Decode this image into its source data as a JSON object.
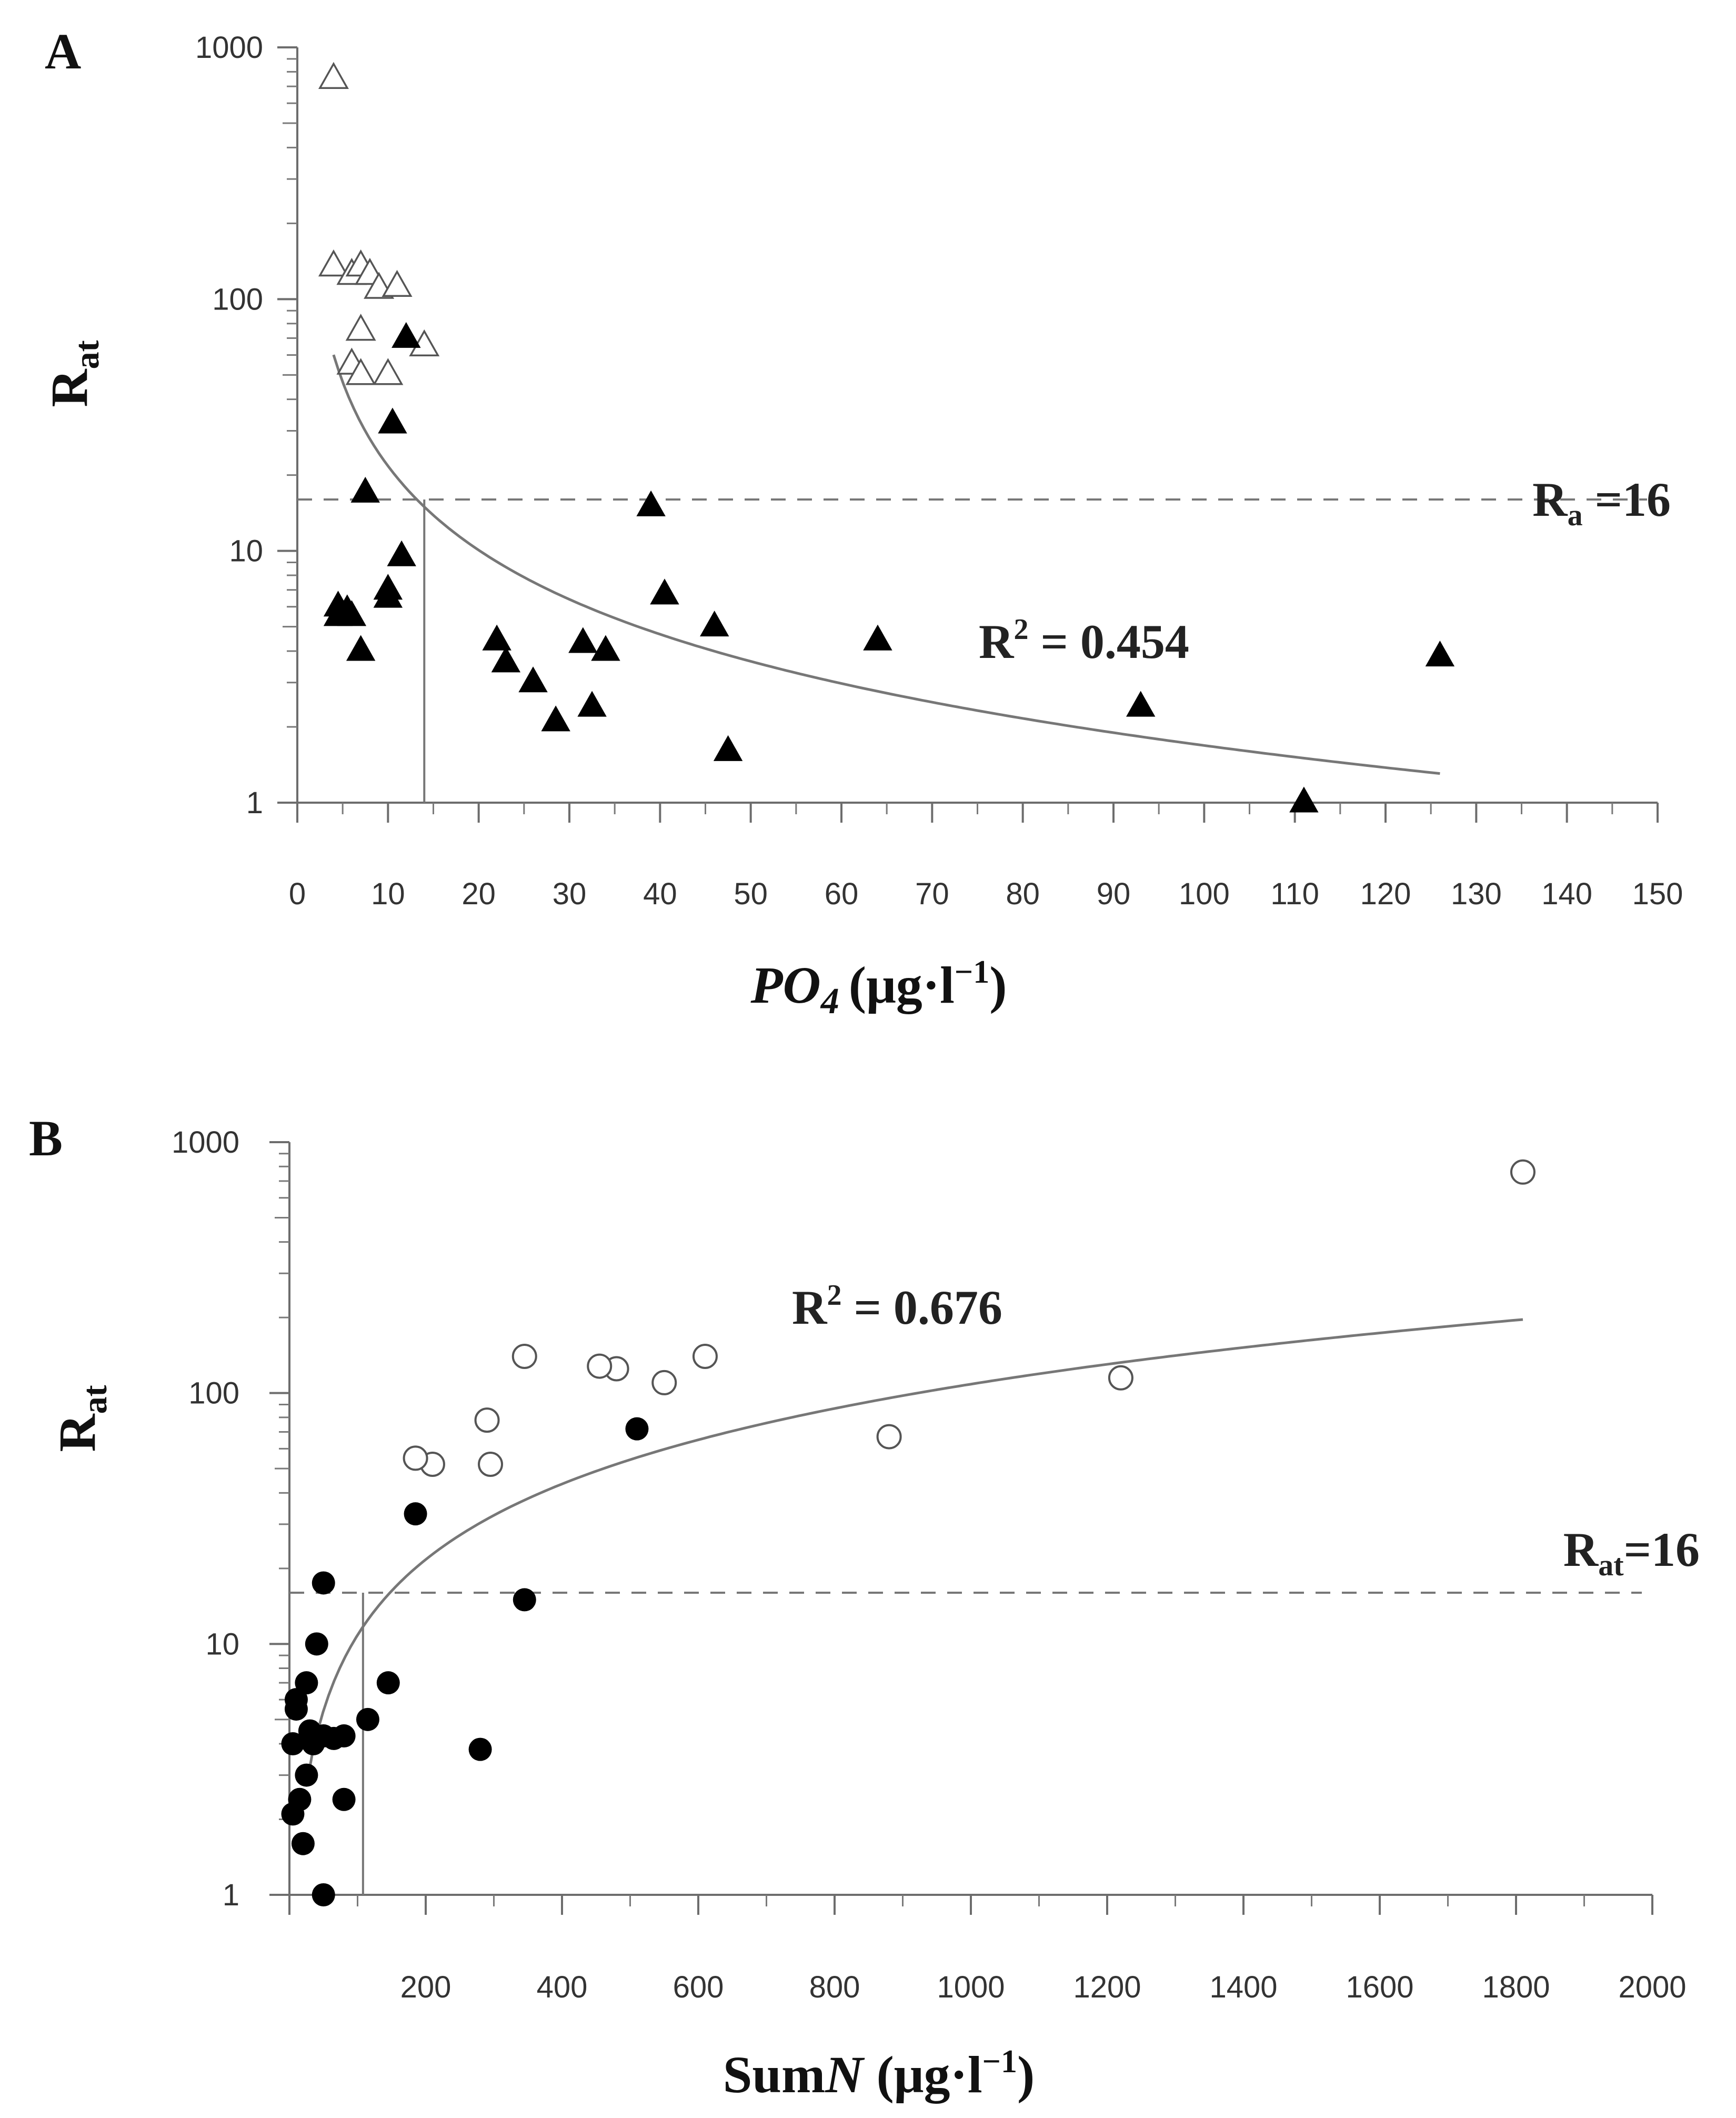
{
  "chart_data": [
    {
      "panel": "A",
      "type": "scatter",
      "title": "",
      "xlabel": {
        "main": "PO",
        "sub": "4",
        "units": "(μg·l",
        "sup": "−1",
        "close": ")"
      },
      "ylabel": {
        "main": "R",
        "sub": "at"
      },
      "x_scale": "linear",
      "y_scale": "log",
      "xlim": [
        0,
        150
      ],
      "ylim": [
        1,
        1000
      ],
      "x_ticks": [
        "0",
        "10",
        "20",
        "30",
        "40",
        "50",
        "60",
        "70",
        "80",
        "90",
        "100",
        "110",
        "120",
        "130",
        "140",
        "150"
      ],
      "y_ticks": [
        "1",
        "10",
        "100",
        "1000"
      ],
      "reference_line": {
        "y": 16,
        "style": "dashed",
        "label_main": "R",
        "label_sub": "a",
        "label_rest": " =16"
      },
      "vertical_marker": {
        "x": 14,
        "y_top": 16
      },
      "fit": {
        "type": "power",
        "a": 280,
        "b": -1.11,
        "x_range": [
          4,
          126
        ],
        "r2_label_main": "R",
        "r2_label_sup": "2",
        "r2_label_rest": " = 0.454"
      },
      "series": [
        {
          "marker": "triangle-open",
          "points": [
            [
              4,
              750
            ],
            [
              4,
              135
            ],
            [
              6,
              125
            ],
            [
              7,
              135
            ],
            [
              8,
              125
            ],
            [
              9,
              110
            ],
            [
              11,
              112
            ],
            [
              7,
              75
            ],
            [
              6,
              55
            ],
            [
              7,
              50
            ],
            [
              10,
              50
            ],
            [
              14,
              65
            ]
          ]
        },
        {
          "marker": "triangle-filled",
          "points": [
            [
              12,
              70
            ],
            [
              10.5,
              32
            ],
            [
              7.5,
              17
            ],
            [
              11.5,
              9.5
            ],
            [
              10,
              7
            ],
            [
              10,
              6.5
            ],
            [
              4.5,
              6
            ],
            [
              4.5,
              5.5
            ],
            [
              5.5,
              5.8
            ],
            [
              6,
              5.5
            ],
            [
              7,
              4
            ],
            [
              22,
              4.4
            ],
            [
              23,
              3.6
            ],
            [
              26,
              3
            ],
            [
              28.5,
              2.1
            ],
            [
              31.5,
              4.3
            ],
            [
              32.5,
              2.4
            ],
            [
              34,
              4
            ],
            [
              39,
              15
            ],
            [
              40.5,
              6.7
            ],
            [
              46,
              5
            ],
            [
              47.5,
              1.6
            ],
            [
              64,
              4.4
            ],
            [
              93,
              2.4
            ],
            [
              111,
              1
            ],
            [
              126,
              3.8
            ]
          ]
        }
      ]
    },
    {
      "panel": "B",
      "type": "scatter",
      "title": "",
      "xlabel": {
        "main": "Sum",
        "italic": "N",
        "units": " (μg·l",
        "sup": "−1",
        "close": ")"
      },
      "ylabel": {
        "main": "R",
        "sub": "at"
      },
      "x_scale": "linear",
      "y_scale": "log",
      "xlim": [
        0,
        2000
      ],
      "ylim": [
        1,
        1000
      ],
      "x_ticks": [
        "200",
        "400",
        "600",
        "800",
        "1000",
        "1200",
        "1400",
        "1600",
        "1800",
        "2000"
      ],
      "y_ticks": [
        "1",
        "10",
        "100",
        "1000"
      ],
      "reference_line": {
        "y": 16,
        "style": "dashed",
        "label_main": "R",
        "label_sub": "at",
        "label_rest": "=16"
      },
      "vertical_marker": {
        "x": 108,
        "y_top": 16
      },
      "fit": {
        "type": "power",
        "a": 0.1085,
        "b": 1.0,
        "x_range": [
          25,
          1810
        ],
        "r2_label_main": "R",
        "r2_label_sup": "2",
        "r2_label_rest": " = 0.676"
      },
      "series": [
        {
          "marker": "circle-open",
          "points": [
            [
              1810,
              760
            ],
            [
              1220,
              115
            ],
            [
              880,
              67
            ],
            [
              610,
              140
            ],
            [
              550,
              110
            ],
            [
              480,
              125
            ],
            [
              455,
              128
            ],
            [
              345,
              140
            ],
            [
              290,
              78
            ],
            [
              295,
              52
            ],
            [
              210,
              52
            ],
            [
              185,
              55
            ]
          ]
        },
        {
          "marker": "circle-filled",
          "points": [
            [
              510,
              72
            ],
            [
              185,
              33
            ],
            [
              345,
              15
            ],
            [
              50,
              17.5
            ],
            [
              40,
              10
            ],
            [
              145,
              7
            ],
            [
              25,
              7
            ],
            [
              10,
              6
            ],
            [
              10,
              5.5
            ],
            [
              115,
              5
            ],
            [
              30,
              4.5
            ],
            [
              50,
              4.3
            ],
            [
              65,
              4.2
            ],
            [
              80,
              4.3
            ],
            [
              5,
              4
            ],
            [
              35,
              4
            ],
            [
              280,
              3.8
            ],
            [
              25,
              3
            ],
            [
              15,
              2.4
            ],
            [
              80,
              2.4
            ],
            [
              5,
              2.1
            ],
            [
              20,
              1.6
            ],
            [
              50,
              1
            ]
          ]
        }
      ]
    }
  ]
}
